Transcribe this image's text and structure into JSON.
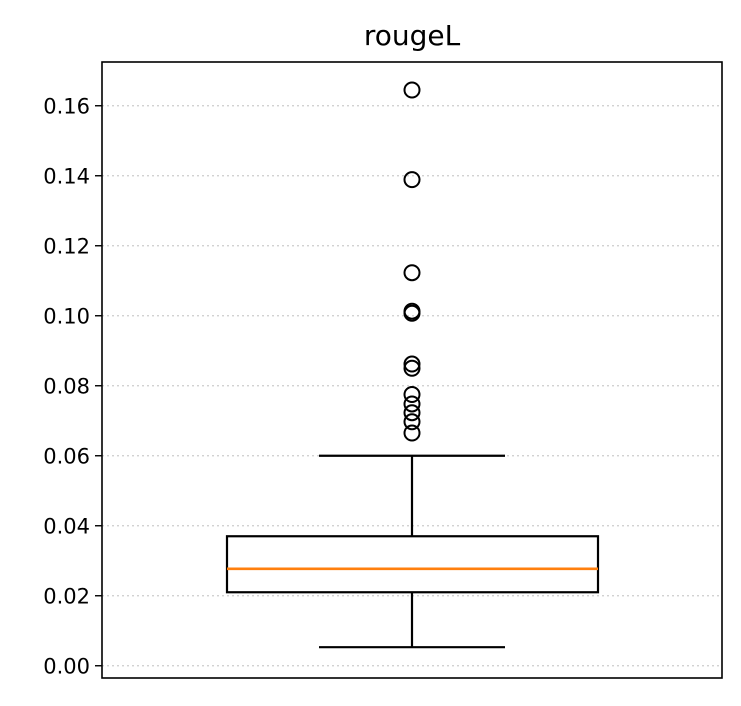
{
  "chart_data": {
    "type": "boxplot",
    "title": "rougeL",
    "xlabel": "",
    "ylabel": "",
    "ylim": [
      -0.0035,
      0.1725
    ],
    "yticks": [
      0.0,
      0.02,
      0.04,
      0.06,
      0.08,
      0.1,
      0.12,
      0.14,
      0.16
    ],
    "ytick_labels": [
      "0.00",
      "0.02",
      "0.04",
      "0.06",
      "0.08",
      "0.10",
      "0.12",
      "0.14",
      "0.16"
    ],
    "grid": "y-dotted",
    "box": {
      "whisker_low": 0.0053,
      "q1": 0.021,
      "median": 0.0277,
      "q3": 0.037,
      "whisker_high": 0.06
    },
    "fliers": [
      0.0665,
      0.0697,
      0.0723,
      0.0748,
      0.0775,
      0.085,
      0.0862,
      0.1007,
      0.1013,
      0.1123,
      0.1389,
      0.1645
    ],
    "colors": {
      "median": "#ff7f0e",
      "box": "#000000",
      "grid": "#cccccc"
    }
  }
}
